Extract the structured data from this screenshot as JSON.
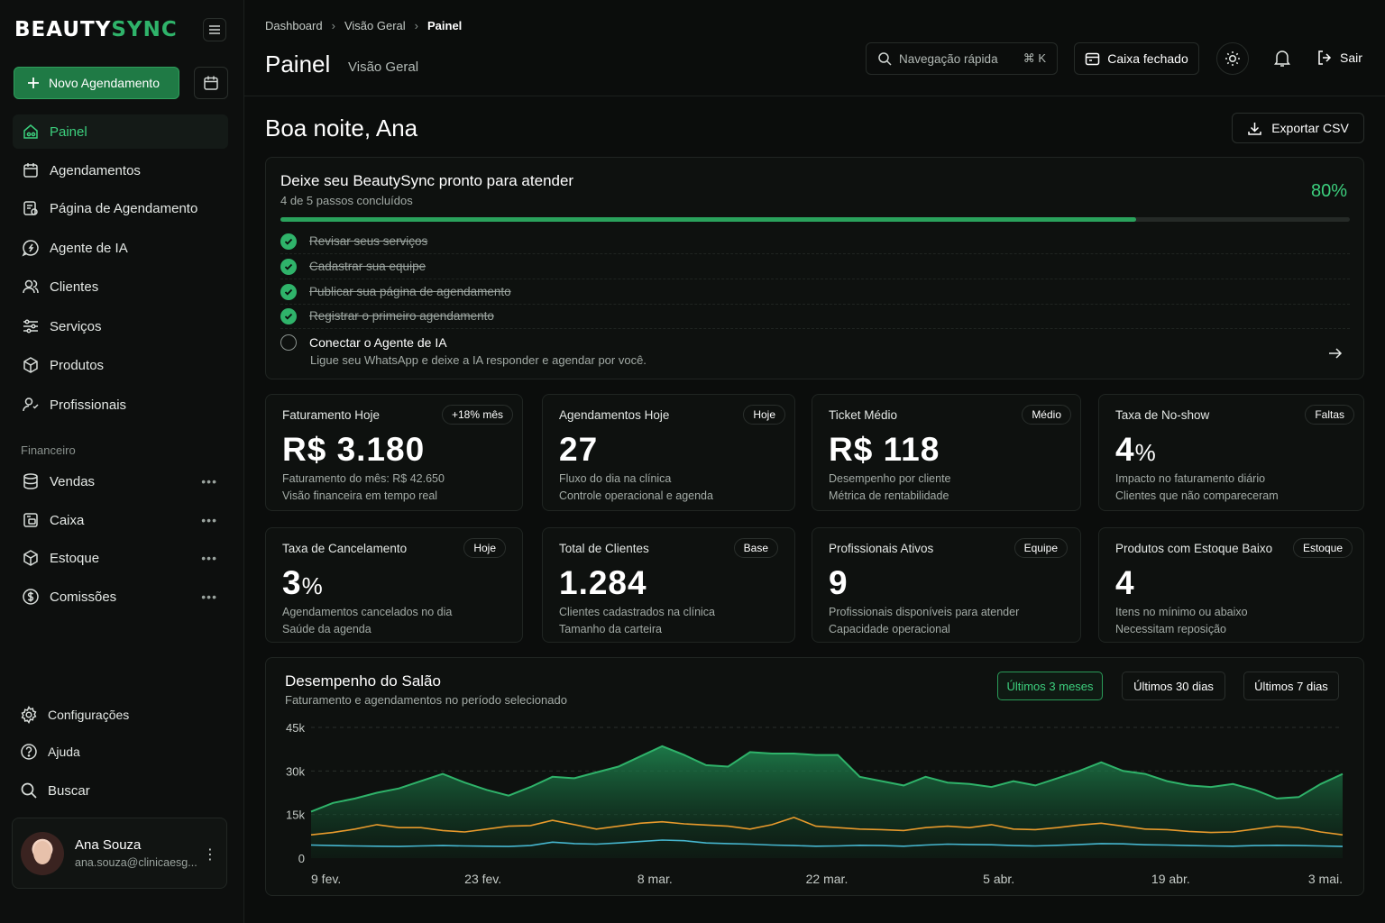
{
  "brand": {
    "part1": "BEAUTY",
    "part2": "SYNC",
    "accent": "#2fb36a"
  },
  "sidebar": {
    "new_button": "Novo Agendamento",
    "items": [
      {
        "label": "Painel",
        "icon": "home-icon",
        "active": true
      },
      {
        "label": "Agendamentos",
        "icon": "calendar-icon"
      },
      {
        "label": "Página de Agendamento",
        "icon": "booking-page-icon"
      },
      {
        "label": "Agente de IA",
        "icon": "ai-agent-icon"
      },
      {
        "label": "Clientes",
        "icon": "users-icon"
      },
      {
        "label": "Serviços",
        "icon": "sliders-icon"
      },
      {
        "label": "Produtos",
        "icon": "box-icon"
      },
      {
        "label": "Profissionais",
        "icon": "professionals-icon"
      }
    ],
    "section_financeiro": "Financeiro",
    "finance_items": [
      {
        "label": "Vendas",
        "icon": "database-icon"
      },
      {
        "label": "Caixa",
        "icon": "cash-register-icon"
      },
      {
        "label": "Estoque",
        "icon": "box-icon"
      },
      {
        "label": "Comissões",
        "icon": "dollar-circle-icon"
      }
    ],
    "bottom_items": [
      {
        "label": "Configurações",
        "icon": "gear-icon"
      },
      {
        "label": "Ajuda",
        "icon": "help-icon"
      },
      {
        "label": "Buscar",
        "icon": "search-icon"
      }
    ],
    "user": {
      "name": "Ana Souza",
      "email": "ana.souza@clinicaesg..."
    }
  },
  "header": {
    "breadcrumbs": [
      "Dashboard",
      "Visão Geral",
      "Painel"
    ],
    "title": "Painel",
    "subtitle": "Visão Geral",
    "search_placeholder": "Navegação rápida",
    "search_shortcut": "⌘ K",
    "cash_status": "Caixa fechado",
    "logout": "Sair"
  },
  "main": {
    "greeting": "Boa noite, Ana",
    "export": "Exportar CSV",
    "setup": {
      "title": "Deixe seu BeautySync pronto para atender",
      "subtitle": "4 de 5 passos concluídos",
      "percent": "80%",
      "progress": 0.8,
      "steps": [
        {
          "label": "Revisar seus serviços",
          "done": true
        },
        {
          "label": "Cadastrar sua equipe",
          "done": true
        },
        {
          "label": "Publicar sua página de agendamento",
          "done": true
        },
        {
          "label": "Registrar o primeiro agendamento",
          "done": true
        },
        {
          "label": "Conectar o Agente de IA",
          "done": false,
          "desc": "Ligue seu WhatsApp e deixe a IA responder e agendar por você."
        }
      ]
    },
    "kpis": [
      {
        "title": "Faturamento Hoje",
        "badge": "+18% mês",
        "value": "R$ 3.180",
        "unit": "",
        "l1": "Faturamento do mês: R$ 42.650",
        "l2": "Visão financeira em tempo real"
      },
      {
        "title": "Agendamentos Hoje",
        "badge": "Hoje",
        "value": "27",
        "unit": "",
        "l1": "Fluxo do dia na clínica",
        "l2": "Controle operacional e agenda"
      },
      {
        "title": "Ticket Médio",
        "badge": "Médio",
        "value": "R$ 118",
        "unit": "",
        "l1": "Desempenho por cliente",
        "l2": "Métrica de rentabilidade"
      },
      {
        "title": "Taxa de No-show",
        "badge": "Faltas",
        "value": "4",
        "unit": "%",
        "l1": "Impacto no faturamento diário",
        "l2": "Clientes que não compareceram"
      },
      {
        "title": "Taxa de Cancelamento",
        "badge": "Hoje",
        "value": "3",
        "unit": "%",
        "l1": "Agendamentos cancelados no dia",
        "l2": "Saúde da agenda"
      },
      {
        "title": "Total de Clientes",
        "badge": "Base",
        "value": "1.284",
        "unit": "",
        "l1": "Clientes cadastrados na clínica",
        "l2": "Tamanho da carteira"
      },
      {
        "title": "Profissionais Ativos",
        "badge": "Equipe",
        "value": "9",
        "unit": "",
        "l1": "Profissionais disponíveis para atender",
        "l2": "Capacidade operacional"
      },
      {
        "title": "Produtos com Estoque Baixo",
        "badge": "Estoque",
        "value": "4",
        "unit": "",
        "l1": "Itens no mínimo ou abaixo",
        "l2": "Necessitam reposição"
      }
    ],
    "chart_header": {
      "title": "Desempenho do Salão",
      "subtitle": "Faturamento e agendamentos no período selecionado",
      "ranges": [
        "Últimos 3 meses",
        "Últimos 30 dias",
        "Últimos 7 dias"
      ],
      "selected_range": "Últimos 3 meses"
    }
  },
  "chart_data": {
    "type": "area",
    "y_ticks": [
      "45k",
      "30k",
      "15k",
      "0"
    ],
    "ylim": [
      0,
      45000
    ],
    "x_tick_labels": [
      "9 fev.",
      "23 fev.",
      "8 mar.",
      "22 mar.",
      "5 abr.",
      "19 abr.",
      "3 mai."
    ],
    "grid": true,
    "series": [
      {
        "color": "#2fb36a",
        "values": [
          16000,
          19000,
          20500,
          22500,
          24000,
          26500,
          29000,
          26000,
          23500,
          21500,
          24500,
          28000,
          27500,
          29500,
          31500,
          35000,
          38500,
          35500,
          32000,
          31500,
          36500,
          36000,
          36000,
          35500,
          35500,
          28000,
          26500,
          25000,
          28000,
          26000,
          25500,
          24500,
          26500,
          25000,
          27500,
          30000,
          33000,
          30000,
          29000,
          26500,
          25000,
          24500,
          25500,
          23500,
          20500,
          21000,
          25500,
          29000
        ]
      },
      {
        "color": "#e89a2c",
        "values": [
          8000,
          8800,
          10000,
          11500,
          10500,
          10500,
          9500,
          9000,
          10000,
          11000,
          11200,
          13000,
          11500,
          10000,
          11000,
          12000,
          12500,
          11800,
          11400,
          11000,
          10000,
          11500,
          14000,
          11000,
          10500,
          10000,
          9800,
          9500,
          10500,
          11000,
          10500,
          11500,
          10000,
          9800,
          10500,
          11400,
          12000,
          11000,
          10000,
          9800,
          9200,
          8800,
          9000,
          10000,
          11000,
          10500,
          9000,
          8000
        ]
      },
      {
        "color": "#46b6cf",
        "values": [
          4500,
          4300,
          4200,
          4100,
          4000,
          4200,
          4300,
          4200,
          4100,
          4000,
          4300,
          5500,
          5000,
          4800,
          5200,
          5700,
          6200,
          6000,
          5200,
          5000,
          4800,
          4500,
          4300,
          4100,
          4200,
          4400,
          4300,
          4100,
          4500,
          4800,
          4700,
          4600,
          4300,
          4200,
          4400,
          4700,
          5000,
          4900,
          4600,
          4500,
          4300,
          4200,
          4100,
          4300,
          4400,
          4300,
          4200,
          4000
        ]
      }
    ]
  }
}
